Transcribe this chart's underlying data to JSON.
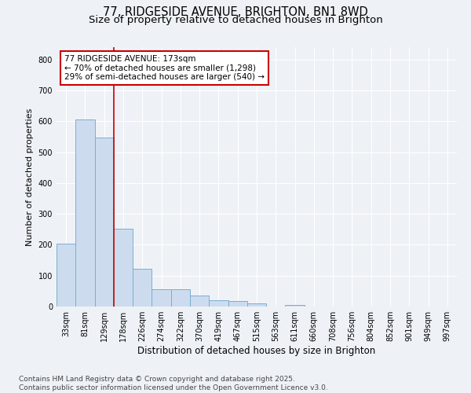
{
  "title_line1": "77, RIDGESIDE AVENUE, BRIGHTON, BN1 8WD",
  "title_line2": "Size of property relative to detached houses in Brighton",
  "xlabel": "Distribution of detached houses by size in Brighton",
  "ylabel": "Number of detached properties",
  "categories": [
    "33sqm",
    "81sqm",
    "129sqm",
    "178sqm",
    "226sqm",
    "274sqm",
    "322sqm",
    "370sqm",
    "419sqm",
    "467sqm",
    "515sqm",
    "563sqm",
    "611sqm",
    "660sqm",
    "708sqm",
    "756sqm",
    "804sqm",
    "852sqm",
    "901sqm",
    "949sqm",
    "997sqm"
  ],
  "values": [
    203,
    607,
    547,
    252,
    122,
    57,
    57,
    35,
    20,
    17,
    9,
    0,
    6,
    0,
    0,
    0,
    0,
    0,
    0,
    0,
    0
  ],
  "bar_color": "#ccdcee",
  "bar_edge_color": "#7aaed0",
  "property_line_bin": 3,
  "property_line_color": "#cc0000",
  "annotation_line1": "77 RIDGESIDE AVENUE: 173sqm",
  "annotation_line2": "← 70% of detached houses are smaller (1,298)",
  "annotation_line3": "29% of semi-detached houses are larger (540) →",
  "annotation_box_color": "#cc0000",
  "ylim": [
    0,
    840
  ],
  "yticks": [
    0,
    100,
    200,
    300,
    400,
    500,
    600,
    700,
    800
  ],
  "background_color": "#eef2f7",
  "grid_color": "#ffffff",
  "footer_line1": "Contains HM Land Registry data © Crown copyright and database right 2025.",
  "footer_line2": "Contains public sector information licensed under the Open Government Licence v3.0.",
  "title_fontsize": 10.5,
  "subtitle_fontsize": 9.5,
  "xlabel_fontsize": 8.5,
  "ylabel_fontsize": 8,
  "tick_fontsize": 7,
  "annotation_fontsize": 7.5,
  "footer_fontsize": 6.5
}
